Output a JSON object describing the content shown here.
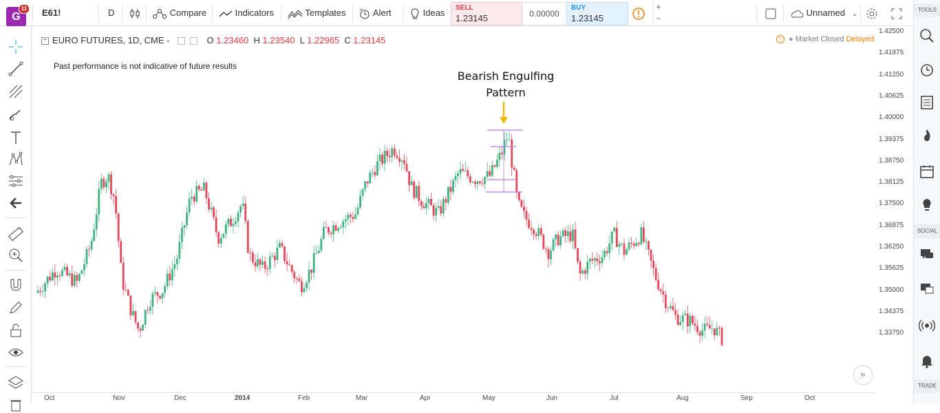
{
  "header": {
    "logo_text": "G",
    "logo_badge": "11",
    "symbol": "E61!",
    "interval": "D",
    "compare_label": "Compare",
    "indicators_label": "Indicators",
    "templates_label": "Templates",
    "alert_label": "Alert",
    "ideas_label": "Ideas",
    "sell_label": "SELL",
    "sell_price": "1.23145",
    "spread": "0.00000",
    "buy_label": "BUY",
    "buy_price": "1.23145",
    "layout_name": "Unnamed"
  },
  "legend": {
    "title": "EURO FUTURES, 1D, CME",
    "o_label": "O",
    "o_value": "1.23460",
    "h_label": "H",
    "h_value": "1.23540",
    "l_label": "L",
    "l_value": "1.22965",
    "c_label": "C",
    "c_value": "1.23145"
  },
  "status": {
    "market": "Market Closed",
    "delayed": "Delayed"
  },
  "disclaimer": "Past performance is not indicative of future results",
  "annotation": {
    "line1": "Bearish Engulfing",
    "line2": "Pattern"
  },
  "right_sidebar": {
    "tools_label": "TOOLS",
    "social_label": "SOCIAL",
    "trade_label": "TRADE"
  },
  "colors": {
    "up": "#3fb27f",
    "down": "#e5475a",
    "accent": "#9c27b0",
    "annotation_arrow": "#f5b800",
    "pattern_lines": "#b07be0"
  },
  "chart_data": {
    "type": "candlestick",
    "price_axis": [
      "1.42500",
      "1.41875",
      "1.41250",
      "1.40625",
      "1.40000",
      "1.39375",
      "1.38750",
      "1.38125",
      "1.37500",
      "1.36875",
      "1.36250",
      "1.35625",
      "1.35000",
      "1.34375",
      "1.33750"
    ],
    "time_axis": [
      "Oct",
      "Nov",
      "Dec",
      "2014",
      "Feb",
      "Mar",
      "Apr",
      "May",
      "Jun",
      "Jul",
      "Aug",
      "Sep",
      "Oct"
    ],
    "ylim": [
      1.3355,
      1.427
    ],
    "grid": false
  }
}
